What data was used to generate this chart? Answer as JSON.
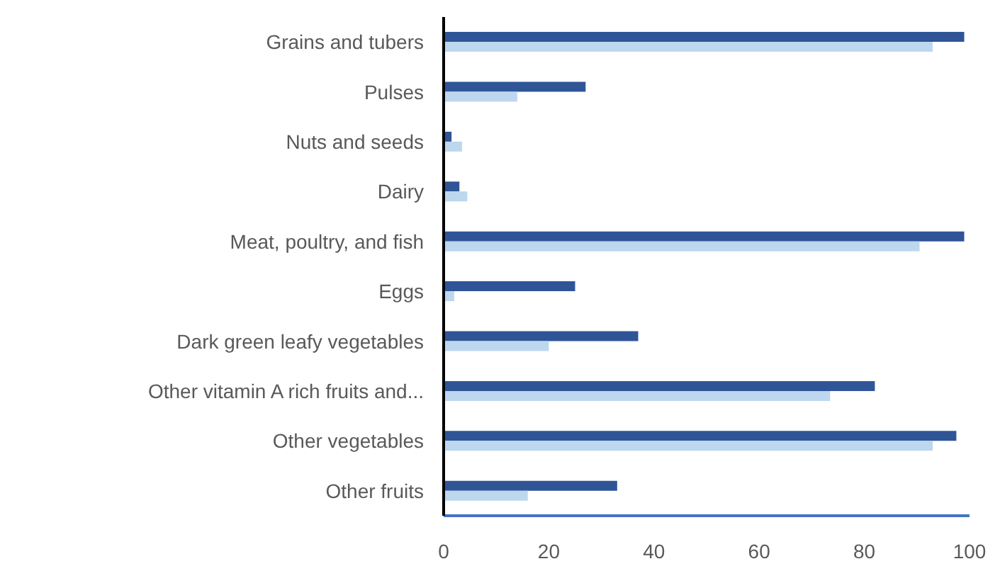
{
  "chart_data": {
    "type": "bar",
    "orientation": "horizontal",
    "categories": [
      "Grains and tubers",
      "Pulses",
      "Nuts and seeds",
      "Dairy",
      "Meat, poultry, and fish",
      "Eggs",
      "Dark green leafy vegetables",
      "Other vitamin A rich fruits and...",
      "Other vegetables",
      "Other fruits"
    ],
    "series": [
      {
        "color": "#2f5597",
        "values": [
          99,
          27,
          1.5,
          3,
          99,
          25,
          37,
          82,
          97.5,
          33
        ]
      },
      {
        "color": "#bdd7ee",
        "values": [
          93,
          14,
          3.5,
          4.5,
          90.5,
          2,
          20,
          73.5,
          93,
          16
        ]
      }
    ],
    "xlim": [
      0,
      100
    ],
    "xticks": [
      0,
      20,
      40,
      60,
      80,
      100
    ],
    "grid": false,
    "legend": false
  }
}
